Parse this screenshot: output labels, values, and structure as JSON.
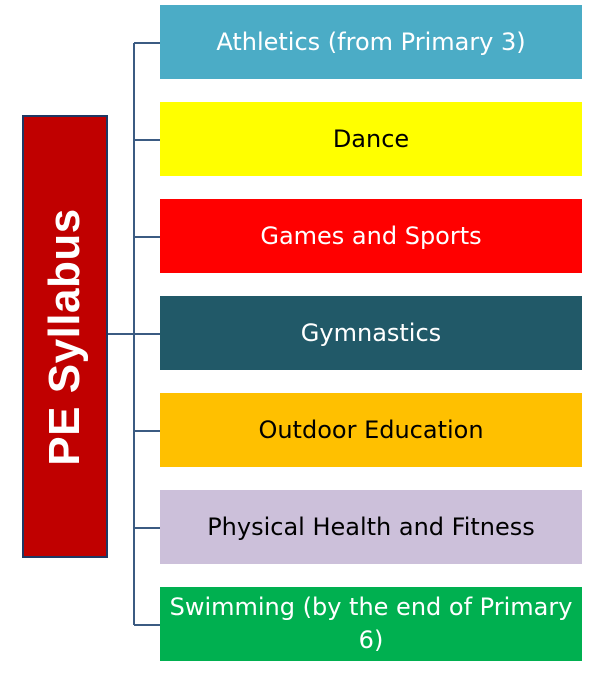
{
  "root": {
    "label": "PE Syllabus",
    "color": "#c00000",
    "text_color": "#ffffff"
  },
  "connector_color": "#3b5b82",
  "items": [
    {
      "label": "Athletics (from Primary 3)",
      "bg": "#4bacc6",
      "text_color": "#ffffff"
    },
    {
      "label": "Dance",
      "bg": "#ffff00",
      "text_color": "#000000"
    },
    {
      "label": "Games and Sports",
      "bg": "#ff0000",
      "text_color": "#ffffff"
    },
    {
      "label": "Gymnastics",
      "bg": "#215968",
      "text_color": "#ffffff"
    },
    {
      "label": "Outdoor Education",
      "bg": "#ffc000",
      "text_color": "#000000"
    },
    {
      "label": "Physical Health and Fitness",
      "bg": "#ccc0da",
      "text_color": "#000000"
    },
    {
      "label": "Swimming (by the end of Primary 6)",
      "bg": "#00b050",
      "text_color": "#ffffff"
    }
  ]
}
